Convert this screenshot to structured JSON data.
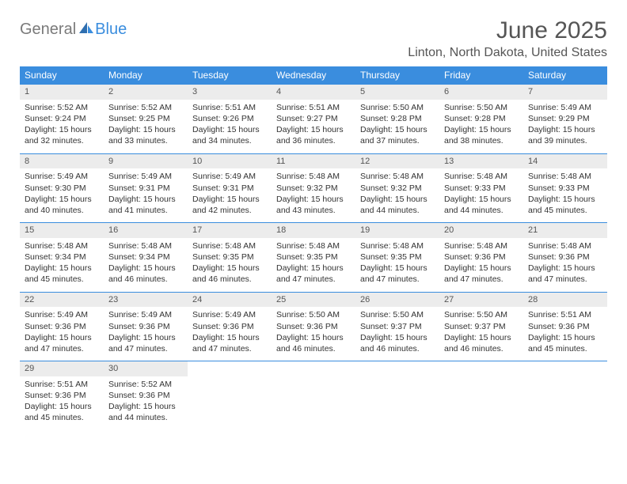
{
  "logo": {
    "part1": "General",
    "part2": "Blue"
  },
  "title": "June 2025",
  "location": "Linton, North Dakota, United States",
  "colors": {
    "header_bg": "#3a8dde",
    "header_text": "#ffffff",
    "daynum_bg": "#ececec",
    "text": "#333333",
    "title_text": "#555555"
  },
  "day_names": [
    "Sunday",
    "Monday",
    "Tuesday",
    "Wednesday",
    "Thursday",
    "Friday",
    "Saturday"
  ],
  "weeks": [
    [
      {
        "num": "1",
        "sunrise": "Sunrise: 5:52 AM",
        "sunset": "Sunset: 9:24 PM",
        "daylight": "Daylight: 15 hours and 32 minutes."
      },
      {
        "num": "2",
        "sunrise": "Sunrise: 5:52 AM",
        "sunset": "Sunset: 9:25 PM",
        "daylight": "Daylight: 15 hours and 33 minutes."
      },
      {
        "num": "3",
        "sunrise": "Sunrise: 5:51 AM",
        "sunset": "Sunset: 9:26 PM",
        "daylight": "Daylight: 15 hours and 34 minutes."
      },
      {
        "num": "4",
        "sunrise": "Sunrise: 5:51 AM",
        "sunset": "Sunset: 9:27 PM",
        "daylight": "Daylight: 15 hours and 36 minutes."
      },
      {
        "num": "5",
        "sunrise": "Sunrise: 5:50 AM",
        "sunset": "Sunset: 9:28 PM",
        "daylight": "Daylight: 15 hours and 37 minutes."
      },
      {
        "num": "6",
        "sunrise": "Sunrise: 5:50 AM",
        "sunset": "Sunset: 9:28 PM",
        "daylight": "Daylight: 15 hours and 38 minutes."
      },
      {
        "num": "7",
        "sunrise": "Sunrise: 5:49 AM",
        "sunset": "Sunset: 9:29 PM",
        "daylight": "Daylight: 15 hours and 39 minutes."
      }
    ],
    [
      {
        "num": "8",
        "sunrise": "Sunrise: 5:49 AM",
        "sunset": "Sunset: 9:30 PM",
        "daylight": "Daylight: 15 hours and 40 minutes."
      },
      {
        "num": "9",
        "sunrise": "Sunrise: 5:49 AM",
        "sunset": "Sunset: 9:31 PM",
        "daylight": "Daylight: 15 hours and 41 minutes."
      },
      {
        "num": "10",
        "sunrise": "Sunrise: 5:49 AM",
        "sunset": "Sunset: 9:31 PM",
        "daylight": "Daylight: 15 hours and 42 minutes."
      },
      {
        "num": "11",
        "sunrise": "Sunrise: 5:48 AM",
        "sunset": "Sunset: 9:32 PM",
        "daylight": "Daylight: 15 hours and 43 minutes."
      },
      {
        "num": "12",
        "sunrise": "Sunrise: 5:48 AM",
        "sunset": "Sunset: 9:32 PM",
        "daylight": "Daylight: 15 hours and 44 minutes."
      },
      {
        "num": "13",
        "sunrise": "Sunrise: 5:48 AM",
        "sunset": "Sunset: 9:33 PM",
        "daylight": "Daylight: 15 hours and 44 minutes."
      },
      {
        "num": "14",
        "sunrise": "Sunrise: 5:48 AM",
        "sunset": "Sunset: 9:33 PM",
        "daylight": "Daylight: 15 hours and 45 minutes."
      }
    ],
    [
      {
        "num": "15",
        "sunrise": "Sunrise: 5:48 AM",
        "sunset": "Sunset: 9:34 PM",
        "daylight": "Daylight: 15 hours and 45 minutes."
      },
      {
        "num": "16",
        "sunrise": "Sunrise: 5:48 AM",
        "sunset": "Sunset: 9:34 PM",
        "daylight": "Daylight: 15 hours and 46 minutes."
      },
      {
        "num": "17",
        "sunrise": "Sunrise: 5:48 AM",
        "sunset": "Sunset: 9:35 PM",
        "daylight": "Daylight: 15 hours and 46 minutes."
      },
      {
        "num": "18",
        "sunrise": "Sunrise: 5:48 AM",
        "sunset": "Sunset: 9:35 PM",
        "daylight": "Daylight: 15 hours and 47 minutes."
      },
      {
        "num": "19",
        "sunrise": "Sunrise: 5:48 AM",
        "sunset": "Sunset: 9:35 PM",
        "daylight": "Daylight: 15 hours and 47 minutes."
      },
      {
        "num": "20",
        "sunrise": "Sunrise: 5:48 AM",
        "sunset": "Sunset: 9:36 PM",
        "daylight": "Daylight: 15 hours and 47 minutes."
      },
      {
        "num": "21",
        "sunrise": "Sunrise: 5:48 AM",
        "sunset": "Sunset: 9:36 PM",
        "daylight": "Daylight: 15 hours and 47 minutes."
      }
    ],
    [
      {
        "num": "22",
        "sunrise": "Sunrise: 5:49 AM",
        "sunset": "Sunset: 9:36 PM",
        "daylight": "Daylight: 15 hours and 47 minutes."
      },
      {
        "num": "23",
        "sunrise": "Sunrise: 5:49 AM",
        "sunset": "Sunset: 9:36 PM",
        "daylight": "Daylight: 15 hours and 47 minutes."
      },
      {
        "num": "24",
        "sunrise": "Sunrise: 5:49 AM",
        "sunset": "Sunset: 9:36 PM",
        "daylight": "Daylight: 15 hours and 47 minutes."
      },
      {
        "num": "25",
        "sunrise": "Sunrise: 5:50 AM",
        "sunset": "Sunset: 9:36 PM",
        "daylight": "Daylight: 15 hours and 46 minutes."
      },
      {
        "num": "26",
        "sunrise": "Sunrise: 5:50 AM",
        "sunset": "Sunset: 9:37 PM",
        "daylight": "Daylight: 15 hours and 46 minutes."
      },
      {
        "num": "27",
        "sunrise": "Sunrise: 5:50 AM",
        "sunset": "Sunset: 9:37 PM",
        "daylight": "Daylight: 15 hours and 46 minutes."
      },
      {
        "num": "28",
        "sunrise": "Sunrise: 5:51 AM",
        "sunset": "Sunset: 9:36 PM",
        "daylight": "Daylight: 15 hours and 45 minutes."
      }
    ],
    [
      {
        "num": "29",
        "sunrise": "Sunrise: 5:51 AM",
        "sunset": "Sunset: 9:36 PM",
        "daylight": "Daylight: 15 hours and 45 minutes."
      },
      {
        "num": "30",
        "sunrise": "Sunrise: 5:52 AM",
        "sunset": "Sunset: 9:36 PM",
        "daylight": "Daylight: 15 hours and 44 minutes."
      },
      null,
      null,
      null,
      null,
      null
    ]
  ]
}
